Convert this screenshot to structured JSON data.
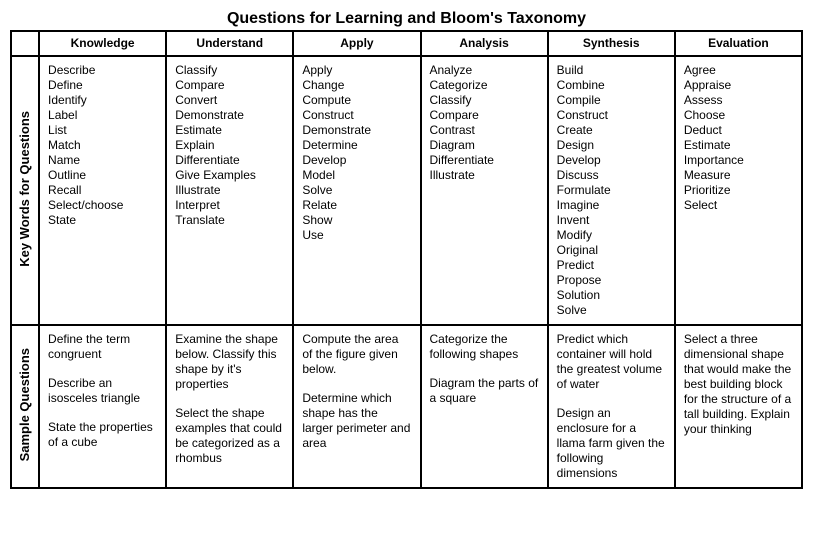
{
  "title": "Questions for Learning and Bloom's Taxonomy",
  "columns": [
    "Knowledge",
    "Understand",
    "Apply",
    "Analysis",
    "Synthesis",
    "Evaluation"
  ],
  "rowLabels": [
    "Key Words for Questions",
    "Sample Questions"
  ],
  "keywords": {
    "knowledge": [
      "Describe",
      "Define",
      "Identify",
      "Label",
      "List",
      "Match",
      "Name",
      "Outline",
      "Recall",
      "Select/choose",
      "State"
    ],
    "understand": [
      "Classify",
      "Compare",
      "Convert",
      "Demonstrate",
      "Estimate",
      "Explain",
      "Differentiate",
      "Give Examples",
      "Illustrate",
      "Interpret",
      "Translate"
    ],
    "apply": [
      "Apply",
      "Change",
      "Compute",
      "Construct",
      "Demonstrate",
      "Determine",
      "Develop",
      "Model",
      "Solve",
      "Relate",
      "Show",
      "Use"
    ],
    "analysis": [
      "Analyze",
      "Categorize",
      "Classify",
      "Compare",
      "Contrast",
      "Diagram",
      "Differentiate",
      "Illustrate"
    ],
    "synthesis": [
      "Build",
      "Combine",
      "Compile",
      "Construct",
      "Create",
      "Design",
      "Develop",
      "Discuss",
      "Formulate",
      "Imagine",
      "Invent",
      "Modify",
      "Original",
      "Predict",
      "Propose",
      "Solution",
      "Solve"
    ],
    "evaluation": [
      "Agree",
      "Appraise",
      "Assess",
      "Choose",
      "Deduct",
      "Estimate",
      "Importance",
      "Measure",
      "Prioritize",
      "Select"
    ]
  },
  "samples": {
    "knowledge": [
      "Define the term congruent",
      "Describe an isosceles triangle",
      "State the properties of a cube"
    ],
    "understand": [
      "Examine the shape below. Classify this shape by it's properties",
      "Select the shape examples that could be categorized as a rhombus"
    ],
    "apply": [
      "Compute the area of the figure given below.",
      "Determine which shape has the larger perimeter and area"
    ],
    "analysis": [
      "Categorize the following shapes",
      "Diagram the parts of a square"
    ],
    "synthesis": [
      "Predict which container will hold the greatest volume of water",
      "Design an enclosure for a llama farm given the following dimensions"
    ],
    "evaluation": [
      "Select a three dimensional shape that would make the best building block for the structure of a tall building. Explain your thinking"
    ]
  },
  "style": {
    "title_fontsize": 16,
    "body_fontsize": 12,
    "border_color": "#000000",
    "background_color": "#ffffff",
    "text_color": "#000000",
    "font_family": "Verdana"
  }
}
